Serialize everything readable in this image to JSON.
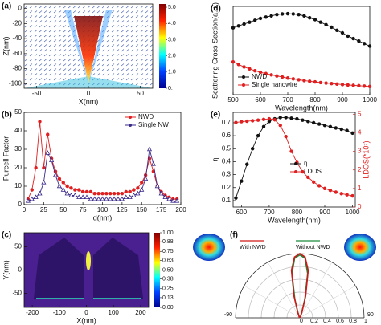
{
  "chart_data": [
    {
      "type": "heatmap",
      "panel_label": "(a)",
      "xlabel": "X(nm)",
      "ylabel": "Z(nm)",
      "xlim": [
        -62,
        62
      ],
      "xticks": [
        -50,
        0,
        50
      ],
      "ylim": [
        -106,
        6
      ],
      "yticks": [
        -100,
        -80,
        -60,
        -40,
        -20,
        0
      ],
      "clim": [
        0,
        5.2
      ],
      "colorbar_ticks": [
        {
          "value": 0,
          "label": "0."
        },
        {
          "value": 1,
          "label": "1.0"
        },
        {
          "value": 2,
          "label": "2.0"
        },
        {
          "value": 3,
          "label": "3.0"
        },
        {
          "value": 4,
          "label": "4.0"
        },
        {
          "value": 5,
          "label": "5.0"
        }
      ]
    },
    {
      "type": "line",
      "panel_label": "(b)",
      "xlabel": "d(nm)",
      "ylabel": "Purcell Factor",
      "legend": "upper right",
      "xlim": [
        0,
        200
      ],
      "xticks": [
        0,
        25,
        50,
        75,
        100,
        125,
        150,
        175,
        200
      ],
      "ylim": [
        0,
        50
      ],
      "yticks": [
        0,
        10,
        20,
        30,
        40,
        50
      ],
      "x": [
        5,
        10,
        15,
        20,
        25,
        30,
        35,
        40,
        45,
        50,
        55,
        60,
        65,
        70,
        75,
        80,
        85,
        90,
        95,
        100,
        105,
        110,
        115,
        120,
        125,
        130,
        135,
        140,
        145,
        150,
        155,
        160,
        165,
        170,
        175,
        180,
        185,
        190,
        195
      ],
      "series": [
        {
          "name": "NWD",
          "color": "#e02020",
          "marker": "circle",
          "values": [
            3,
            8,
            20,
            45,
            20,
            38,
            25,
            18,
            14,
            12,
            10,
            9,
            8,
            8,
            7,
            7,
            7,
            6,
            6,
            6,
            6,
            6,
            6,
            6,
            6,
            7,
            7,
            8,
            9,
            12,
            16,
            25,
            18,
            10,
            7,
            5,
            4,
            3,
            3
          ]
        },
        {
          "name": "Single NW",
          "color": "#3a2a8a",
          "marker": "triangle",
          "values": [
            2,
            3,
            4,
            6,
            12,
            28,
            24,
            16,
            10,
            8,
            6,
            5,
            5,
            4,
            4,
            4,
            3,
            3,
            3,
            3,
            3,
            3,
            3,
            3,
            3,
            4,
            4,
            5,
            6,
            8,
            14,
            30,
            22,
            10,
            6,
            4,
            3,
            2,
            2
          ]
        }
      ]
    },
    {
      "type": "heatmap",
      "panel_label": "(c)",
      "xlabel": "X(nm)",
      "ylabel": "Y(nm)",
      "xlim": [
        -230,
        230
      ],
      "xticks": [
        -200,
        -100,
        0,
        100,
        200
      ],
      "ylim": [
        -80,
        80
      ],
      "yticks": [
        -50,
        0,
        50
      ],
      "clim": [
        0,
        1
      ],
      "colorbar_ticks": [
        {
          "value": 0,
          "label": "0.00"
        },
        0.13,
        0.25,
        0.38,
        {
          "value": 0.5,
          "label": "0.50"
        },
        0.63,
        0.75,
        0.88,
        {
          "value": 1,
          "label": "1.00"
        }
      ]
    },
    {
      "type": "line",
      "panel_label": "(d)",
      "xlabel": "Wavelength(nm)",
      "ylabel": "Scattering Cross Section(a.u.)",
      "legend": "lower left",
      "xlim": [
        500,
        1000
      ],
      "xticks": [
        500,
        600,
        700,
        800,
        900,
        1000
      ],
      "ylim": [
        0,
        7
      ],
      "x": [
        500,
        520,
        540,
        560,
        580,
        600,
        620,
        640,
        660,
        680,
        700,
        720,
        740,
        760,
        780,
        800,
        820,
        840,
        860,
        880,
        900,
        920,
        940,
        960,
        980,
        1000
      ],
      "series": [
        {
          "name": "NWD",
          "color": "#111111",
          "marker": "circle",
          "values": [
            5.3,
            5.45,
            5.6,
            5.75,
            5.9,
            6.05,
            6.15,
            6.25,
            6.35,
            6.4,
            6.42,
            6.4,
            6.35,
            6.25,
            6.1,
            5.95,
            5.75,
            5.55,
            5.35,
            5.1,
            4.9,
            4.65,
            4.45,
            4.25,
            4.05,
            3.85
          ]
        },
        {
          "name": "Single nanowire",
          "color": "#e02020",
          "marker": "circle",
          "values": [
            2.6,
            2.4,
            2.2,
            2.05,
            1.9,
            1.78,
            1.67,
            1.57,
            1.48,
            1.4,
            1.32,
            1.25,
            1.18,
            1.12,
            1.06,
            1.01,
            0.96,
            0.92,
            0.88,
            0.84,
            0.8,
            0.77,
            0.74,
            0.71,
            0.68,
            0.65
          ]
        }
      ]
    },
    {
      "type": "line",
      "panel_label": "(e)",
      "xlabel": "Wavelength(nm)",
      "ylabel": "η",
      "y2label": "LDOS(*10⁷)",
      "y2color": "#e02020",
      "legend": "center",
      "xlim": [
        570,
        1010
      ],
      "xticks": [
        600,
        700,
        800,
        900,
        1000
      ],
      "ylim": [
        0.05,
        0.78
      ],
      "yticks": [
        0.1,
        0.2,
        0.3,
        0.4,
        0.5,
        0.6,
        0.7
      ],
      "y2lim": [
        0,
        5.1
      ],
      "y2ticks": [
        0,
        1,
        2,
        3,
        4,
        5
      ],
      "x": [
        580,
        600,
        620,
        640,
        660,
        680,
        700,
        720,
        740,
        760,
        780,
        800,
        820,
        840,
        860,
        880,
        900,
        920,
        940,
        960,
        980,
        1000
      ],
      "series": [
        {
          "name": "η",
          "color": "#111111",
          "marker": "circle",
          "values": [
            0.12,
            0.25,
            0.38,
            0.5,
            0.6,
            0.67,
            0.71,
            0.73,
            0.74,
            0.74,
            0.735,
            0.73,
            0.72,
            0.71,
            0.7,
            0.69,
            0.68,
            0.67,
            0.66,
            0.65,
            0.64,
            0.62
          ]
        },
        {
          "name": "LDOS",
          "color": "#e02020",
          "marker": "circle",
          "axis": "y2",
          "values": [
            4.55,
            4.6,
            4.62,
            4.65,
            4.68,
            4.72,
            4.75,
            4.7,
            4.4,
            3.8,
            3.0,
            2.4,
            1.9,
            1.6,
            1.35,
            1.15,
            1.0,
            0.9,
            0.8,
            0.72,
            0.66,
            0.6
          ]
        }
      ]
    },
    {
      "type": "polar",
      "panel_label": "(f)",
      "rticks": [
        0,
        0.2,
        0.4,
        0.6,
        0.8,
        1
      ],
      "thetaticks": [
        -90,
        90
      ],
      "theta": [
        -90,
        -60,
        -30,
        -20,
        -15,
        -10,
        -5,
        0,
        5,
        10,
        15,
        20,
        30,
        60,
        90
      ],
      "series": [
        {
          "name": "Without NWD",
          "color": "#1a8a3a",
          "values": [
            0,
            0,
            0.02,
            0.08,
            0.3,
            0.7,
            0.93,
            0.98,
            0.93,
            0.7,
            0.3,
            0.08,
            0.02,
            0,
            0
          ]
        },
        {
          "name": "With NWD",
          "color": "#d01818",
          "values": [
            0,
            0,
            0.02,
            0.1,
            0.35,
            0.75,
            0.95,
            1,
            0.95,
            0.75,
            0.35,
            0.1,
            0.02,
            0,
            0
          ]
        }
      ]
    }
  ]
}
